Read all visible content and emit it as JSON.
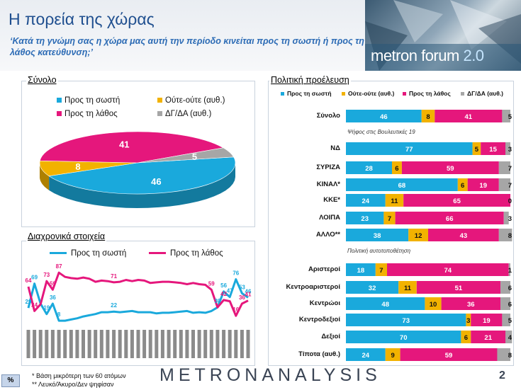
{
  "header": {
    "title": "Η πορεία της χώρας",
    "subtitle": "‘Κατά τη γνώμη σας η χώρα μας αυτή την περίοδο κινείται προς τη σωστή ή προς τη λάθος κατεύθυνση;’",
    "logo_text_a": "metron forum",
    "logo_text_b": "2.0"
  },
  "colors": {
    "right": "#1aa9dc",
    "neutral": "#f2b200",
    "wrong": "#e5177c",
    "dk": "#a6a6a6"
  },
  "chart_data": [
    {
      "type": "pie",
      "title": "Σύνολο",
      "legend": [
        "Προς τη σωστή",
        "Ούτε-ούτε (αυθ.)",
        "Προς τη λάθος",
        "ΔΓ/ΔΑ (αυθ.)"
      ],
      "values": [
        46,
        8,
        41,
        5
      ],
      "style": "3d"
    },
    {
      "type": "line",
      "title": "Διαχρονικά στοιχεία",
      "series": [
        {
          "name": "Προς τη σωστή",
          "values": [
            29,
            69,
            36,
            19,
            36,
            8,
            8,
            10,
            12,
            15,
            17,
            19,
            22,
            22,
            23,
            22,
            23,
            24,
            22,
            22,
            22,
            20,
            21,
            21,
            22,
            23,
            24,
            21,
            22,
            21,
            24,
            30,
            56,
            47,
            76,
            53,
            46
          ]
        },
        {
          "name": "Προς τη λάθος",
          "values": [
            64,
            24,
            35,
            73,
            59,
            87,
            80,
            78,
            77,
            79,
            77,
            72,
            74,
            73,
            71,
            72,
            75,
            73,
            75,
            74,
            70,
            71,
            72,
            72,
            71,
            70,
            68,
            70,
            68,
            67,
            59,
            30,
            42,
            40,
            16,
            36,
            41
          ]
        }
      ],
      "point_labels": {
        "right": [
          [
            0,
            "29"
          ],
          [
            1,
            "69"
          ],
          [
            3,
            "19"
          ],
          [
            4,
            "36"
          ],
          [
            5,
            "8"
          ],
          [
            14,
            "22"
          ],
          [
            31,
            "30"
          ],
          [
            32,
            "56"
          ],
          [
            33,
            "47"
          ],
          [
            34,
            "76"
          ],
          [
            35,
            "53"
          ],
          [
            36,
            "46"
          ]
        ],
        "wrong": [
          [
            0,
            "64"
          ],
          [
            1,
            "24"
          ],
          [
            3,
            "73"
          ],
          [
            4,
            "59"
          ],
          [
            5,
            "87"
          ],
          [
            14,
            "71"
          ],
          [
            30,
            "59"
          ],
          [
            32,
            "42"
          ],
          [
            34,
            "16"
          ],
          [
            35,
            "36"
          ],
          [
            36,
            "41"
          ]
        ]
      },
      "ylim": [
        0,
        100
      ]
    },
    {
      "type": "bar",
      "title": "Πολιτική προέλευση",
      "stacked": true,
      "legend": [
        "Προς τη σωστή",
        "Ούτε-ούτε (αυθ.)",
        "Προς τη λάθος",
        "ΔΓ/ΔΑ (αυθ.)"
      ],
      "sections": [
        "Ψήφος στις Βουλευτικές 19",
        "Πολιτική αυτοτοποθέτηση"
      ],
      "categories": [
        "Σύνολο",
        "ΝΔ",
        "ΣΥΡΙΖΑ",
        "ΚΙΝΑΛ*",
        "ΚΚΕ*",
        "ΛΟΙΠΑ",
        "ΑΛΛΟ**",
        "Αριστεροί",
        "Κεντροαριστεροί",
        "Κεντρώοι",
        "Κεντροδεξιοί",
        "Δεξιοί",
        "Τίποτα (αυθ.)"
      ],
      "series": [
        {
          "name": "Προς τη σωστή",
          "values": [
            46,
            77,
            28,
            68,
            24,
            23,
            38,
            18,
            32,
            48,
            73,
            70,
            24
          ]
        },
        {
          "name": "Ούτε-ούτε (αυθ.)",
          "values": [
            8,
            5,
            6,
            6,
            11,
            7,
            12,
            7,
            11,
            10,
            3,
            6,
            9
          ]
        },
        {
          "name": "Προς τη λάθος",
          "values": [
            41,
            15,
            59,
            19,
            65,
            66,
            43,
            74,
            51,
            36,
            19,
            21,
            59
          ]
        },
        {
          "name": "ΔΓ/ΔΑ (αυθ.)",
          "values": [
            5,
            3,
            7,
            7,
            0,
            3,
            8,
            1,
            6,
            6,
            5,
            4,
            8
          ]
        }
      ]
    }
  ],
  "footer": {
    "percent_badge": "%",
    "note1": "*  Βάση μικρότερη των 60 ατόμων",
    "note2": "** Λευκό/Άκυρο/Δεν ψηφίσαν",
    "brand": "METRONANALYSIS",
    "page": "2"
  }
}
